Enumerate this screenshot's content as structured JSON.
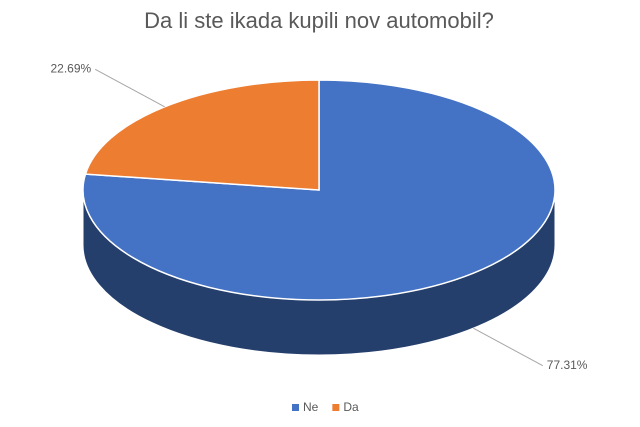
{
  "chart_data": {
    "type": "pie",
    "title": "Da li ste ikada kupili nov automobil?",
    "categories": [
      "Ne",
      "Da"
    ],
    "values": [
      77.31,
      22.69
    ],
    "value_labels": [
      "77.31%",
      "22.69%"
    ],
    "colors": [
      "#4472c4",
      "#ed7d31"
    ],
    "legend": "bottom"
  }
}
